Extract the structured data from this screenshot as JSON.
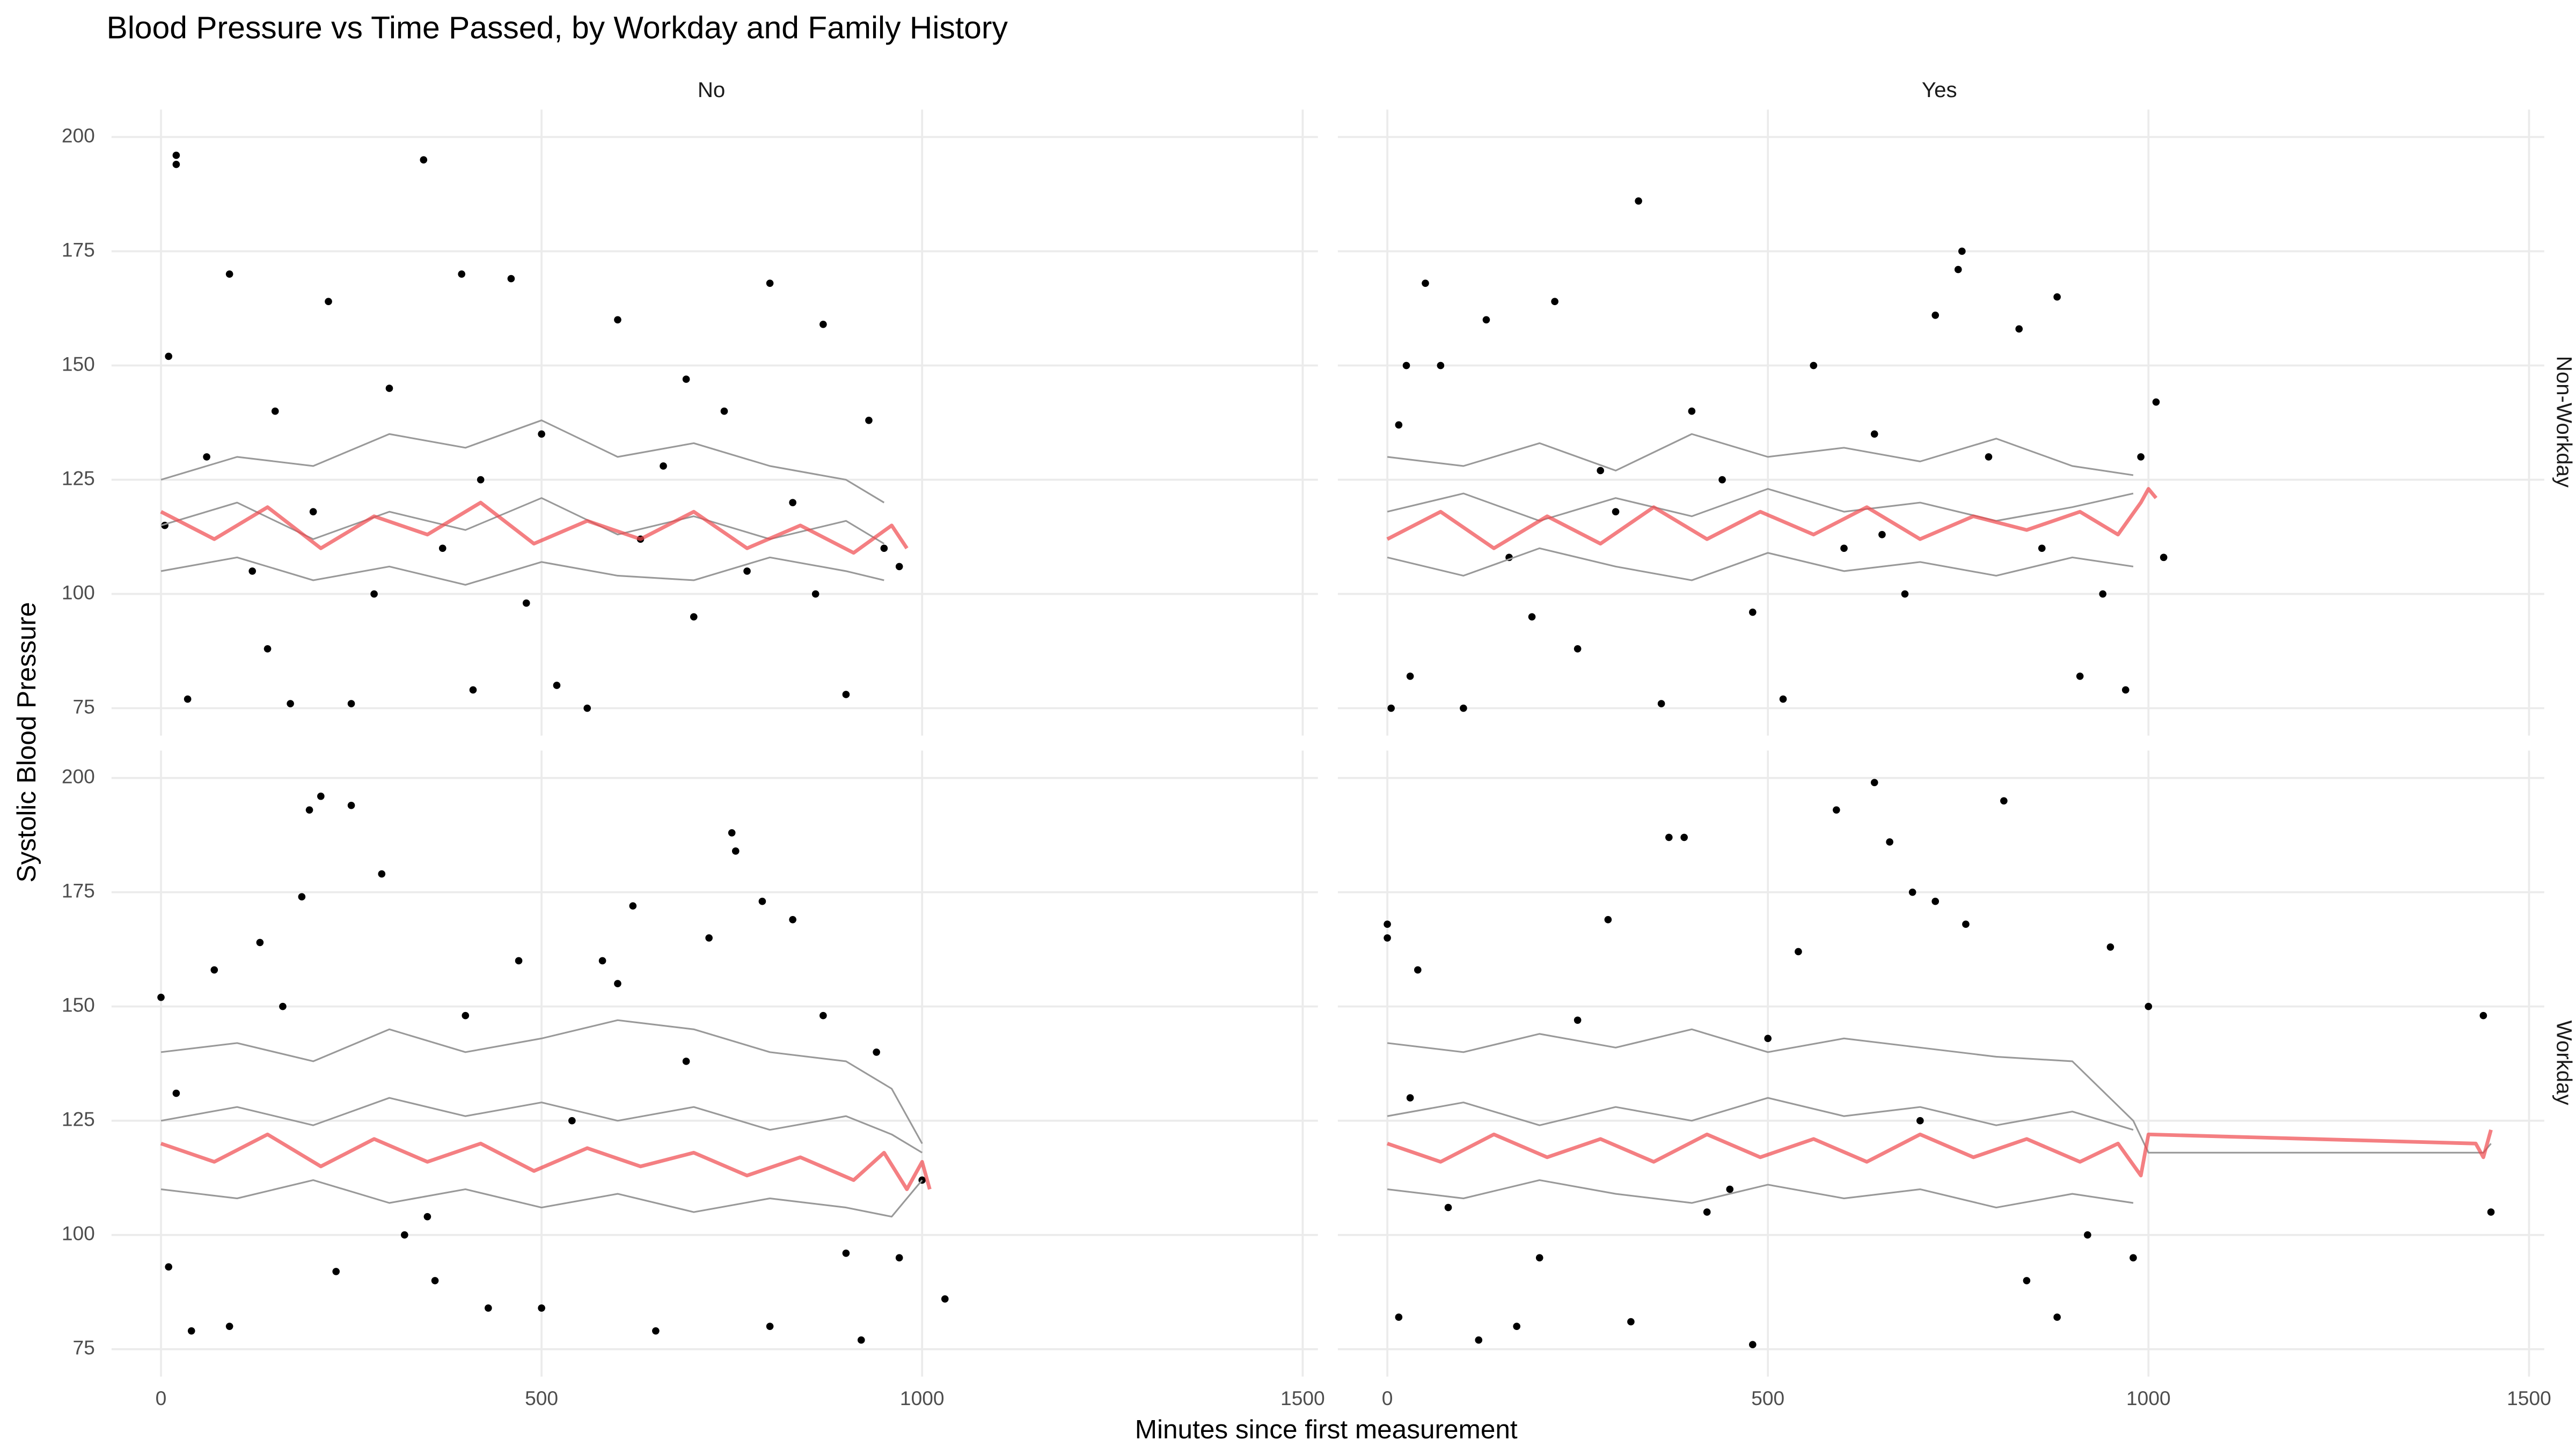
{
  "title": "Blood Pressure vs Time Passed, by Workday and Family History",
  "x_label": "Minutes since first measurement",
  "y_label": "Systolic Blood Pressure",
  "facets": {
    "columns": [
      "No",
      "Yes"
    ],
    "rows": [
      "Non-Workday",
      "Workday"
    ]
  },
  "chart_data": [
    {
      "type": "scatter",
      "xlim": [
        -65,
        1520
      ],
      "ylim": [
        69,
        206
      ],
      "xticks": [
        0,
        500,
        1000,
        1500
      ],
      "yticks": [
        75,
        100,
        125,
        150,
        175,
        200
      ],
      "grid": true,
      "series": [
        {
          "type": "scatter",
          "color": "#000000",
          "x": [
            5,
            20,
            20,
            35,
            60,
            90,
            120,
            150,
            170,
            200,
            220,
            250,
            280,
            300,
            345,
            370,
            395,
            420,
            460,
            480,
            500,
            520,
            560,
            600,
            630,
            660,
            700,
            740,
            770,
            800,
            830,
            860,
            870,
            900,
            930,
            950,
            970,
            10,
            140,
            410,
            690
          ],
          "values": [
            115,
            196,
            194,
            77,
            130,
            170,
            105,
            140,
            76,
            118,
            164,
            76,
            100,
            145,
            195,
            110,
            170,
            125,
            169,
            98,
            135,
            80,
            75,
            160,
            112,
            128,
            95,
            140,
            105,
            168,
            120,
            100,
            159,
            78,
            138,
            110,
            106,
            152,
            88,
            79,
            147
          ]
        },
        {
          "type": "line",
          "color": "#999999",
          "x": [
            0,
            100,
            200,
            300,
            400,
            500,
            600,
            700,
            800,
            900,
            950
          ],
          "values": [
            125,
            130,
            128,
            135,
            132,
            138,
            130,
            133,
            128,
            125,
            120
          ]
        },
        {
          "type": "line",
          "color": "#999999",
          "x": [
            0,
            100,
            200,
            300,
            400,
            500,
            600,
            700,
            800,
            900,
            950
          ],
          "values": [
            105,
            108,
            103,
            106,
            102,
            107,
            104,
            103,
            108,
            105,
            103
          ]
        },
        {
          "type": "line",
          "color": "#999999",
          "x": [
            0,
            100,
            200,
            300,
            400,
            500,
            600,
            700,
            800,
            900,
            950
          ],
          "values": [
            115,
            120,
            112,
            118,
            114,
            121,
            113,
            117,
            112,
            116,
            111
          ]
        },
        {
          "type": "line",
          "color": "#f0484d",
          "opacity": 0.7,
          "x": [
            0,
            70,
            140,
            210,
            280,
            350,
            420,
            490,
            560,
            630,
            700,
            770,
            840,
            910,
            960,
            980
          ],
          "values": [
            118,
            112,
            119,
            110,
            117,
            113,
            120,
            111,
            116,
            112,
            118,
            110,
            115,
            109,
            115,
            110
          ]
        }
      ]
    },
    {
      "type": "scatter",
      "xlim": [
        -65,
        1520
      ],
      "ylim": [
        69,
        206
      ],
      "xticks": [
        0,
        500,
        1000,
        1500
      ],
      "yticks": [
        75,
        100,
        125,
        150,
        175,
        200
      ],
      "grid": true,
      "series": [
        {
          "type": "scatter",
          "color": "#000000",
          "x": [
            5,
            15,
            30,
            50,
            70,
            100,
            130,
            160,
            190,
            220,
            250,
            280,
            330,
            360,
            400,
            440,
            480,
            520,
            560,
            600,
            640,
            680,
            720,
            750,
            755,
            790,
            830,
            860,
            880,
            910,
            940,
            970,
            990,
            1010,
            1020,
            25,
            300,
            650
          ],
          "values": [
            75,
            137,
            82,
            168,
            150,
            75,
            160,
            108,
            95,
            164,
            88,
            127,
            186,
            76,
            140,
            125,
            96,
            77,
            150,
            110,
            135,
            100,
            161,
            171,
            175,
            130,
            158,
            110,
            165,
            82,
            100,
            79,
            130,
            142,
            108,
            150,
            118,
            113
          ]
        },
        {
          "type": "line",
          "color": "#999999",
          "x": [
            0,
            100,
            200,
            300,
            400,
            500,
            600,
            700,
            800,
            900,
            980
          ],
          "values": [
            130,
            128,
            133,
            127,
            135,
            130,
            132,
            129,
            134,
            128,
            126
          ]
        },
        {
          "type": "line",
          "color": "#999999",
          "x": [
            0,
            100,
            200,
            300,
            400,
            500,
            600,
            700,
            800,
            900,
            980
          ],
          "values": [
            108,
            104,
            110,
            106,
            103,
            109,
            105,
            107,
            104,
            108,
            106
          ]
        },
        {
          "type": "line",
          "color": "#999999",
          "x": [
            0,
            100,
            200,
            300,
            400,
            500,
            600,
            700,
            800,
            900,
            980
          ],
          "values": [
            118,
            122,
            116,
            121,
            117,
            123,
            118,
            120,
            116,
            119,
            122
          ]
        },
        {
          "type": "line",
          "color": "#f0484d",
          "opacity": 0.7,
          "x": [
            0,
            70,
            140,
            210,
            280,
            350,
            420,
            490,
            560,
            630,
            700,
            770,
            840,
            910,
            960,
            990,
            1000,
            1010
          ],
          "values": [
            112,
            118,
            110,
            117,
            111,
            119,
            112,
            118,
            113,
            119,
            112,
            117,
            114,
            118,
            113,
            120,
            123,
            121
          ]
        }
      ]
    },
    {
      "type": "scatter",
      "xlim": [
        -65,
        1520
      ],
      "ylim": [
        69,
        206
      ],
      "xticks": [
        0,
        500,
        1000,
        1500
      ],
      "yticks": [
        75,
        100,
        125,
        150,
        175,
        200
      ],
      "grid": true,
      "series": [
        {
          "type": "scatter",
          "color": "#000000",
          "x": [
            0,
            10,
            40,
            70,
            90,
            130,
            160,
            185,
            195,
            210,
            230,
            250,
            290,
            320,
            360,
            400,
            430,
            470,
            500,
            540,
            580,
            620,
            650,
            690,
            720,
            750,
            755,
            790,
            800,
            830,
            870,
            900,
            920,
            940,
            970,
            1000,
            1030,
            20,
            350,
            600
          ],
          "values": [
            152,
            93,
            79,
            158,
            80,
            164,
            150,
            174,
            193,
            196,
            92,
            194,
            179,
            100,
            90,
            148,
            84,
            160,
            84,
            125,
            160,
            172,
            79,
            138,
            165,
            188,
            184,
            173,
            80,
            169,
            148,
            96,
            77,
            140,
            95,
            112,
            86,
            131,
            104,
            155
          ]
        },
        {
          "type": "line",
          "color": "#999999",
          "x": [
            0,
            100,
            200,
            300,
            400,
            500,
            600,
            700,
            800,
            900,
            960,
            1000
          ],
          "values": [
            140,
            142,
            138,
            145,
            140,
            143,
            147,
            145,
            140,
            138,
            132,
            120
          ]
        },
        {
          "type": "line",
          "color": "#999999",
          "x": [
            0,
            100,
            200,
            300,
            400,
            500,
            600,
            700,
            800,
            900,
            960,
            1000
          ],
          "values": [
            110,
            108,
            112,
            107,
            110,
            106,
            109,
            105,
            108,
            106,
            104,
            112
          ]
        },
        {
          "type": "line",
          "color": "#999999",
          "x": [
            0,
            100,
            200,
            300,
            400,
            500,
            600,
            700,
            800,
            900,
            960,
            1000
          ],
          "values": [
            125,
            128,
            124,
            130,
            126,
            129,
            125,
            128,
            123,
            126,
            122,
            118
          ]
        },
        {
          "type": "line",
          "color": "#f0484d",
          "opacity": 0.7,
          "x": [
            0,
            70,
            140,
            210,
            280,
            350,
            420,
            490,
            560,
            630,
            700,
            770,
            840,
            910,
            950,
            980,
            1000,
            1010
          ],
          "values": [
            120,
            116,
            122,
            115,
            121,
            116,
            120,
            114,
            119,
            115,
            118,
            113,
            117,
            112,
            118,
            110,
            116,
            110
          ]
        }
      ]
    },
    {
      "type": "scatter",
      "xlim": [
        -65,
        1520
      ],
      "ylim": [
        69,
        206
      ],
      "xticks": [
        0,
        500,
        1000,
        1500
      ],
      "yticks": [
        75,
        100,
        125,
        150,
        175,
        200
      ],
      "grid": true,
      "series": [
        {
          "type": "scatter",
          "color": "#000000",
          "x": [
            0,
            0,
            15,
            40,
            80,
            120,
            170,
            200,
            250,
            290,
            320,
            370,
            390,
            420,
            480,
            500,
            540,
            590,
            640,
            660,
            690,
            720,
            760,
            810,
            840,
            880,
            920,
            950,
            980,
            1000,
            1440,
            1450,
            30,
            450,
            700
          ],
          "values": [
            168,
            165,
            82,
            158,
            106,
            77,
            80,
            95,
            147,
            169,
            81,
            187,
            187,
            105,
            76,
            143,
            162,
            193,
            199,
            186,
            175,
            173,
            168,
            195,
            90,
            82,
            100,
            163,
            95,
            150,
            148,
            105,
            130,
            110,
            125
          ]
        },
        {
          "type": "line",
          "color": "#999999",
          "x": [
            0,
            100,
            200,
            300,
            400,
            500,
            600,
            700,
            800,
            900,
            980,
            1000,
            1440,
            1450
          ],
          "values": [
            142,
            140,
            144,
            141,
            145,
            140,
            143,
            141,
            139,
            138,
            125,
            118,
            118,
            120
          ]
        },
        {
          "type": "line",
          "color": "#999999",
          "x": [
            0,
            100,
            200,
            300,
            400,
            500,
            600,
            700,
            800,
            900,
            980
          ],
          "values": [
            110,
            108,
            112,
            109,
            107,
            111,
            108,
            110,
            106,
            109,
            107
          ]
        },
        {
          "type": "line",
          "color": "#999999",
          "x": [
            0,
            100,
            200,
            300,
            400,
            500,
            600,
            700,
            800,
            900,
            980
          ],
          "values": [
            126,
            129,
            124,
            128,
            125,
            130,
            126,
            128,
            124,
            127,
            123
          ]
        },
        {
          "type": "line",
          "color": "#f0484d",
          "opacity": 0.7,
          "x": [
            0,
            70,
            140,
            210,
            280,
            350,
            420,
            490,
            560,
            630,
            700,
            770,
            840,
            910,
            960,
            990,
            1000,
            1430,
            1440,
            1450
          ],
          "values": [
            120,
            116,
            122,
            117,
            121,
            116,
            122,
            117,
            121,
            116,
            122,
            117,
            121,
            116,
            120,
            113,
            122,
            120,
            117,
            123
          ]
        }
      ]
    }
  ]
}
